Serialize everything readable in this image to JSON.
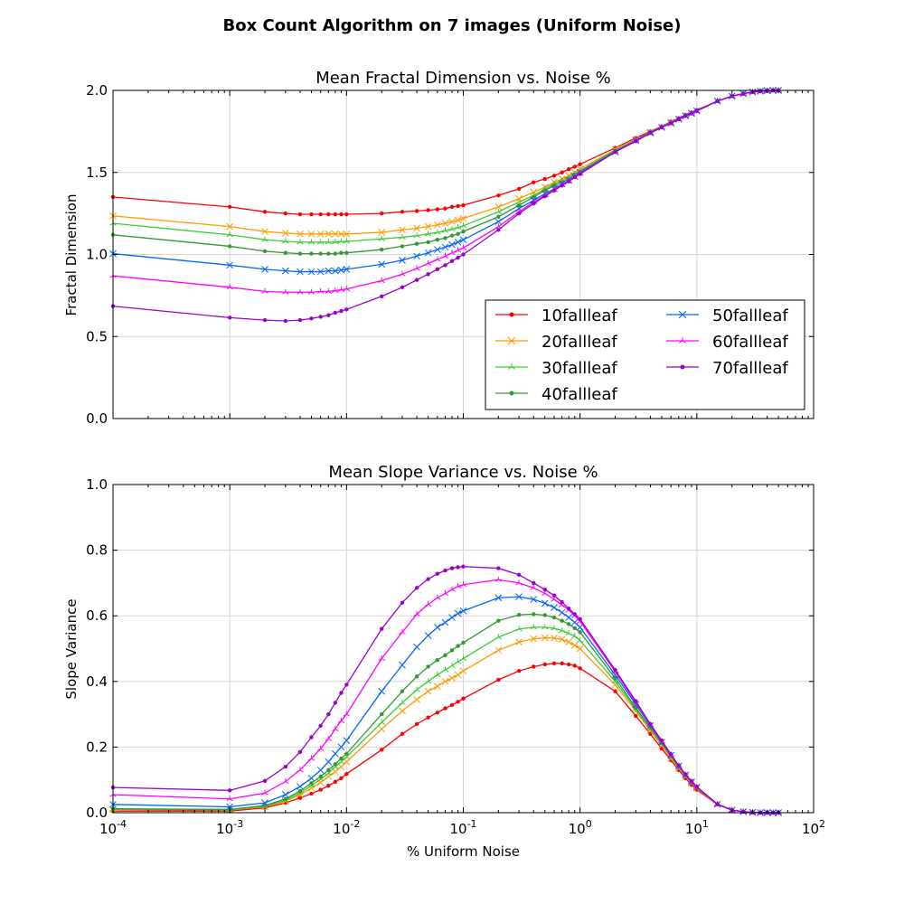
{
  "figure": {
    "title": "Box Count Algorithm on 7 images (Uniform Noise)"
  },
  "chart_data": [
    {
      "type": "line",
      "title": "Mean Fractal Dimension vs. Noise %",
      "xlabel": "",
      "ylabel": "Fractal Dimension",
      "xscale": "log",
      "xlim": [
        0.0001,
        100
      ],
      "ylim": [
        0.0,
        2.0
      ],
      "yticks": [
        0.0,
        0.5,
        1.0,
        1.5,
        2.0
      ],
      "ytick_labels": [
        "0.0",
        "0.5",
        "1.0",
        "1.5",
        "2.0"
      ],
      "grid": true,
      "legend": {
        "placement": "lower-right",
        "columns": 2
      },
      "x": [
        0.0001,
        0.001,
        0.002,
        0.003,
        0.004,
        0.005,
        0.006,
        0.007,
        0.008,
        0.009,
        0.01,
        0.02,
        0.03,
        0.04,
        0.05,
        0.06,
        0.07,
        0.08,
        0.09,
        0.1,
        0.2,
        0.3,
        0.4,
        0.5,
        0.6,
        0.7,
        0.8,
        0.9,
        1,
        2,
        3,
        4,
        5,
        6,
        7,
        8,
        9,
        10,
        15,
        20,
        25,
        30,
        35,
        40,
        45,
        50
      ],
      "series": [
        {
          "name": "10fallleaf",
          "color": "#ff0000",
          "marker": "dot",
          "values": [
            1.35,
            1.29,
            1.26,
            1.25,
            1.245,
            1.245,
            1.245,
            1.245,
            1.245,
            1.245,
            1.245,
            1.25,
            1.26,
            1.265,
            1.27,
            1.275,
            1.28,
            1.29,
            1.295,
            1.3,
            1.36,
            1.4,
            1.44,
            1.46,
            1.48,
            1.5,
            1.52,
            1.535,
            1.55,
            1.65,
            1.71,
            1.75,
            1.78,
            1.81,
            1.83,
            1.85,
            1.865,
            1.88,
            1.935,
            1.965,
            1.98,
            1.99,
            1.995,
            1.998,
            2.0,
            2.0
          ]
        },
        {
          "name": "20fallleaf",
          "color": "#ff9900",
          "marker": "x",
          "values": [
            1.235,
            1.17,
            1.14,
            1.13,
            1.125,
            1.125,
            1.125,
            1.125,
            1.125,
            1.125,
            1.125,
            1.135,
            1.15,
            1.16,
            1.17,
            1.18,
            1.19,
            1.2,
            1.21,
            1.22,
            1.29,
            1.34,
            1.38,
            1.41,
            1.44,
            1.46,
            1.48,
            1.5,
            1.52,
            1.64,
            1.7,
            1.745,
            1.775,
            1.805,
            1.825,
            1.845,
            1.86,
            1.875,
            1.935,
            1.965,
            1.98,
            1.99,
            1.995,
            1.998,
            2.0,
            2.0
          ]
        },
        {
          "name": "30fallleaf",
          "color": "#33cc33",
          "marker": "tri",
          "values": [
            1.19,
            1.12,
            1.09,
            1.08,
            1.075,
            1.075,
            1.075,
            1.075,
            1.075,
            1.08,
            1.08,
            1.095,
            1.105,
            1.115,
            1.125,
            1.135,
            1.145,
            1.155,
            1.165,
            1.175,
            1.26,
            1.32,
            1.36,
            1.4,
            1.43,
            1.45,
            1.47,
            1.49,
            1.51,
            1.635,
            1.7,
            1.745,
            1.775,
            1.805,
            1.825,
            1.845,
            1.86,
            1.875,
            1.935,
            1.965,
            1.98,
            1.99,
            1.995,
            1.998,
            2.0,
            2.0
          ]
        },
        {
          "name": "40fallleaf",
          "color": "#339933",
          "marker": "dot",
          "values": [
            1.12,
            1.05,
            1.02,
            1.01,
            1.005,
            1.005,
            1.005,
            1.005,
            1.005,
            1.01,
            1.01,
            1.03,
            1.05,
            1.065,
            1.075,
            1.09,
            1.1,
            1.115,
            1.125,
            1.14,
            1.23,
            1.3,
            1.35,
            1.39,
            1.42,
            1.44,
            1.46,
            1.485,
            1.505,
            1.63,
            1.695,
            1.745,
            1.775,
            1.8,
            1.825,
            1.845,
            1.86,
            1.875,
            1.935,
            1.965,
            1.98,
            1.99,
            1.995,
            1.998,
            2.0,
            2.0
          ]
        },
        {
          "name": "50fallleaf",
          "color": "#0066ff",
          "marker": "x",
          "values": [
            1.005,
            0.935,
            0.91,
            0.9,
            0.895,
            0.895,
            0.895,
            0.9,
            0.9,
            0.905,
            0.91,
            0.94,
            0.965,
            0.99,
            1.01,
            1.03,
            1.045,
            1.06,
            1.075,
            1.09,
            1.2,
            1.28,
            1.33,
            1.37,
            1.4,
            1.43,
            1.45,
            1.475,
            1.5,
            1.625,
            1.695,
            1.74,
            1.775,
            1.8,
            1.825,
            1.845,
            1.86,
            1.875,
            1.935,
            1.965,
            1.98,
            1.99,
            1.995,
            1.998,
            2.0,
            2.0
          ]
        },
        {
          "name": "60fallleaf",
          "color": "#ff00ff",
          "marker": "tri",
          "values": [
            0.87,
            0.8,
            0.775,
            0.77,
            0.77,
            0.77,
            0.775,
            0.775,
            0.78,
            0.785,
            0.79,
            0.84,
            0.88,
            0.915,
            0.945,
            0.97,
            0.99,
            1.01,
            1.025,
            1.04,
            1.17,
            1.26,
            1.32,
            1.36,
            1.395,
            1.425,
            1.45,
            1.47,
            1.495,
            1.625,
            1.695,
            1.74,
            1.775,
            1.8,
            1.825,
            1.845,
            1.86,
            1.875,
            1.935,
            1.965,
            1.98,
            1.99,
            1.995,
            1.998,
            2.0,
            2.0
          ]
        },
        {
          "name": "70fallleaf",
          "color": "#9900cc",
          "marker": "dot",
          "values": [
            0.685,
            0.615,
            0.6,
            0.595,
            0.6,
            0.61,
            0.62,
            0.63,
            0.645,
            0.655,
            0.665,
            0.745,
            0.8,
            0.845,
            0.88,
            0.91,
            0.935,
            0.96,
            0.98,
            1.0,
            1.15,
            1.25,
            1.31,
            1.355,
            1.39,
            1.42,
            1.445,
            1.47,
            1.49,
            1.625,
            1.69,
            1.74,
            1.775,
            1.8,
            1.825,
            1.845,
            1.86,
            1.875,
            1.935,
            1.965,
            1.98,
            1.99,
            1.995,
            1.998,
            2.0,
            2.0
          ]
        }
      ]
    },
    {
      "type": "line",
      "title": "Mean Slope Variance vs. Noise %",
      "xlabel": "% Uniform Noise",
      "ylabel": "Slope Variance",
      "xscale": "log",
      "xlim": [
        0.0001,
        100
      ],
      "ylim": [
        0.0,
        1.0
      ],
      "yticks": [
        0.0,
        0.2,
        0.4,
        0.6,
        0.8,
        1.0
      ],
      "ytick_labels": [
        "0.0",
        "0.2",
        "0.4",
        "0.6",
        "0.8",
        "1.0"
      ],
      "xtick_exponents": [
        "-4",
        "-3",
        "-2",
        "-1",
        "0",
        "1",
        "2"
      ],
      "grid": true,
      "x": [
        0.0001,
        0.001,
        0.002,
        0.003,
        0.004,
        0.005,
        0.006,
        0.007,
        0.008,
        0.009,
        0.01,
        0.02,
        0.03,
        0.04,
        0.05,
        0.06,
        0.07,
        0.08,
        0.09,
        0.1,
        0.2,
        0.3,
        0.4,
        0.5,
        0.6,
        0.7,
        0.8,
        0.9,
        1,
        2,
        3,
        4,
        5,
        6,
        7,
        8,
        9,
        10,
        15,
        20,
        25,
        30,
        35,
        40,
        45,
        50
      ],
      "series": [
        {
          "name": "10fallleaf",
          "color": "#ff0000",
          "marker": "dot",
          "values": [
            0.005,
            0.005,
            0.015,
            0.03,
            0.045,
            0.058,
            0.07,
            0.082,
            0.094,
            0.105,
            0.118,
            0.192,
            0.24,
            0.27,
            0.29,
            0.305,
            0.318,
            0.328,
            0.338,
            0.348,
            0.405,
            0.432,
            0.445,
            0.452,
            0.455,
            0.455,
            0.452,
            0.448,
            0.44,
            0.37,
            0.295,
            0.24,
            0.195,
            0.16,
            0.13,
            0.105,
            0.085,
            0.07,
            0.025,
            0.008,
            0.003,
            0.001,
            0.0,
            0.0,
            0.0,
            0.0
          ]
        },
        {
          "name": "20fallleaf",
          "color": "#ff9900",
          "marker": "x",
          "values": [
            0.01,
            0.008,
            0.018,
            0.035,
            0.055,
            0.075,
            0.092,
            0.11,
            0.125,
            0.14,
            0.155,
            0.255,
            0.31,
            0.345,
            0.37,
            0.385,
            0.4,
            0.41,
            0.42,
            0.432,
            0.495,
            0.52,
            0.53,
            0.533,
            0.532,
            0.528,
            0.52,
            0.51,
            0.5,
            0.39,
            0.31,
            0.25,
            0.205,
            0.165,
            0.135,
            0.11,
            0.09,
            0.075,
            0.025,
            0.008,
            0.003,
            0.001,
            0.0,
            0.0,
            0.0,
            0.0
          ]
        },
        {
          "name": "30fallleaf",
          "color": "#33cc33",
          "marker": "tri",
          "values": [
            0.01,
            0.008,
            0.02,
            0.038,
            0.06,
            0.082,
            0.102,
            0.12,
            0.14,
            0.155,
            0.17,
            0.275,
            0.335,
            0.375,
            0.4,
            0.42,
            0.435,
            0.448,
            0.46,
            0.47,
            0.535,
            0.56,
            0.565,
            0.565,
            0.562,
            0.555,
            0.547,
            0.538,
            0.525,
            0.4,
            0.315,
            0.255,
            0.21,
            0.17,
            0.138,
            0.112,
            0.092,
            0.076,
            0.026,
            0.008,
            0.003,
            0.001,
            0.0,
            0.0,
            0.0,
            0.0
          ]
        },
        {
          "name": "40fallleaf",
          "color": "#339933",
          "marker": "dot",
          "values": [
            0.012,
            0.01,
            0.022,
            0.042,
            0.066,
            0.09,
            0.11,
            0.13,
            0.148,
            0.165,
            0.18,
            0.3,
            0.37,
            0.415,
            0.445,
            0.465,
            0.48,
            0.495,
            0.508,
            0.518,
            0.585,
            0.603,
            0.605,
            0.602,
            0.595,
            0.585,
            0.575,
            0.562,
            0.55,
            0.41,
            0.32,
            0.26,
            0.212,
            0.172,
            0.14,
            0.114,
            0.093,
            0.077,
            0.026,
            0.008,
            0.003,
            0.001,
            0.0,
            0.0,
            0.0,
            0.0
          ]
        },
        {
          "name": "50fallleaf",
          "color": "#0066ff",
          "marker": "x",
          "values": [
            0.025,
            0.018,
            0.03,
            0.055,
            0.08,
            0.105,
            0.13,
            0.155,
            0.18,
            0.2,
            0.22,
            0.37,
            0.45,
            0.505,
            0.54,
            0.565,
            0.58,
            0.595,
            0.607,
            0.615,
            0.655,
            0.658,
            0.65,
            0.638,
            0.625,
            0.61,
            0.595,
            0.58,
            0.565,
            0.42,
            0.33,
            0.265,
            0.215,
            0.175,
            0.142,
            0.115,
            0.094,
            0.078,
            0.026,
            0.008,
            0.003,
            0.001,
            0.0,
            0.0,
            0.0,
            0.0
          ]
        },
        {
          "name": "60fallleaf",
          "color": "#ff00ff",
          "marker": "tri",
          "values": [
            0.055,
            0.042,
            0.06,
            0.095,
            0.13,
            0.165,
            0.195,
            0.225,
            0.255,
            0.28,
            0.3,
            0.47,
            0.55,
            0.605,
            0.635,
            0.655,
            0.668,
            0.68,
            0.69,
            0.695,
            0.71,
            0.7,
            0.685,
            0.668,
            0.65,
            0.633,
            0.617,
            0.6,
            0.583,
            0.43,
            0.335,
            0.268,
            0.217,
            0.177,
            0.143,
            0.116,
            0.095,
            0.078,
            0.026,
            0.008,
            0.003,
            0.001,
            0.0,
            0.0,
            0.0,
            0.0
          ]
        },
        {
          "name": "70fallleaf",
          "color": "#9900cc",
          "marker": "dot",
          "values": [
            0.077,
            0.068,
            0.097,
            0.14,
            0.185,
            0.23,
            0.265,
            0.3,
            0.335,
            0.365,
            0.39,
            0.56,
            0.64,
            0.685,
            0.712,
            0.728,
            0.738,
            0.745,
            0.748,
            0.75,
            0.745,
            0.725,
            0.7,
            0.68,
            0.662,
            0.642,
            0.622,
            0.605,
            0.59,
            0.435,
            0.34,
            0.27,
            0.22,
            0.178,
            0.144,
            0.117,
            0.096,
            0.079,
            0.026,
            0.008,
            0.003,
            0.001,
            0.0,
            0.0,
            0.0,
            0.0
          ]
        }
      ]
    }
  ]
}
